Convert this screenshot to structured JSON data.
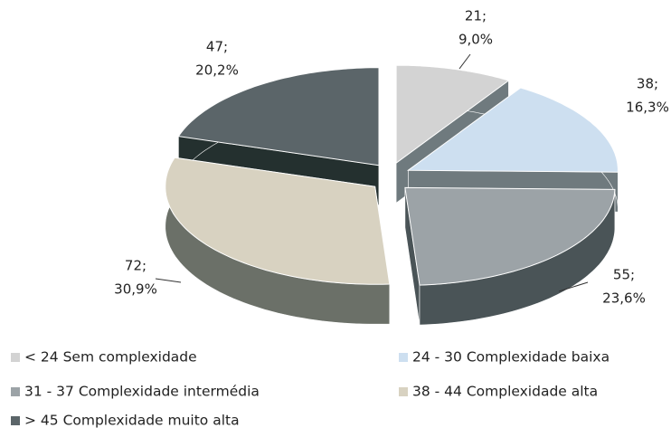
{
  "chart_data": {
    "type": "pie",
    "categories": [
      "< 24  Sem complexidade",
      "24 - 30 Complexidade baixa",
      "31 - 37  Complexidade intermédia",
      "38 - 44 Complexidade alta",
      "> 45 Complexidade muito alta"
    ],
    "values": [
      21,
      38,
      55,
      72,
      47
    ],
    "value_labels": [
      "21;",
      "38;",
      "55;",
      "72;",
      "47;"
    ],
    "percents": [
      9.0,
      16.3,
      23.6,
      30.9,
      20.2
    ],
    "percent_labels": [
      "9,0%",
      "16,3%",
      "23,6%",
      "30,9%",
      "20,2%"
    ],
    "colors": [
      "#d3d3d3",
      "#cddff0",
      "#9ca3a7",
      "#d8d2c1",
      "#5b6569"
    ],
    "side_colors": [
      "#6f7a7e",
      "#6f7a7e",
      "#4a5457",
      "#6b7068",
      "#24302f"
    ]
  }
}
